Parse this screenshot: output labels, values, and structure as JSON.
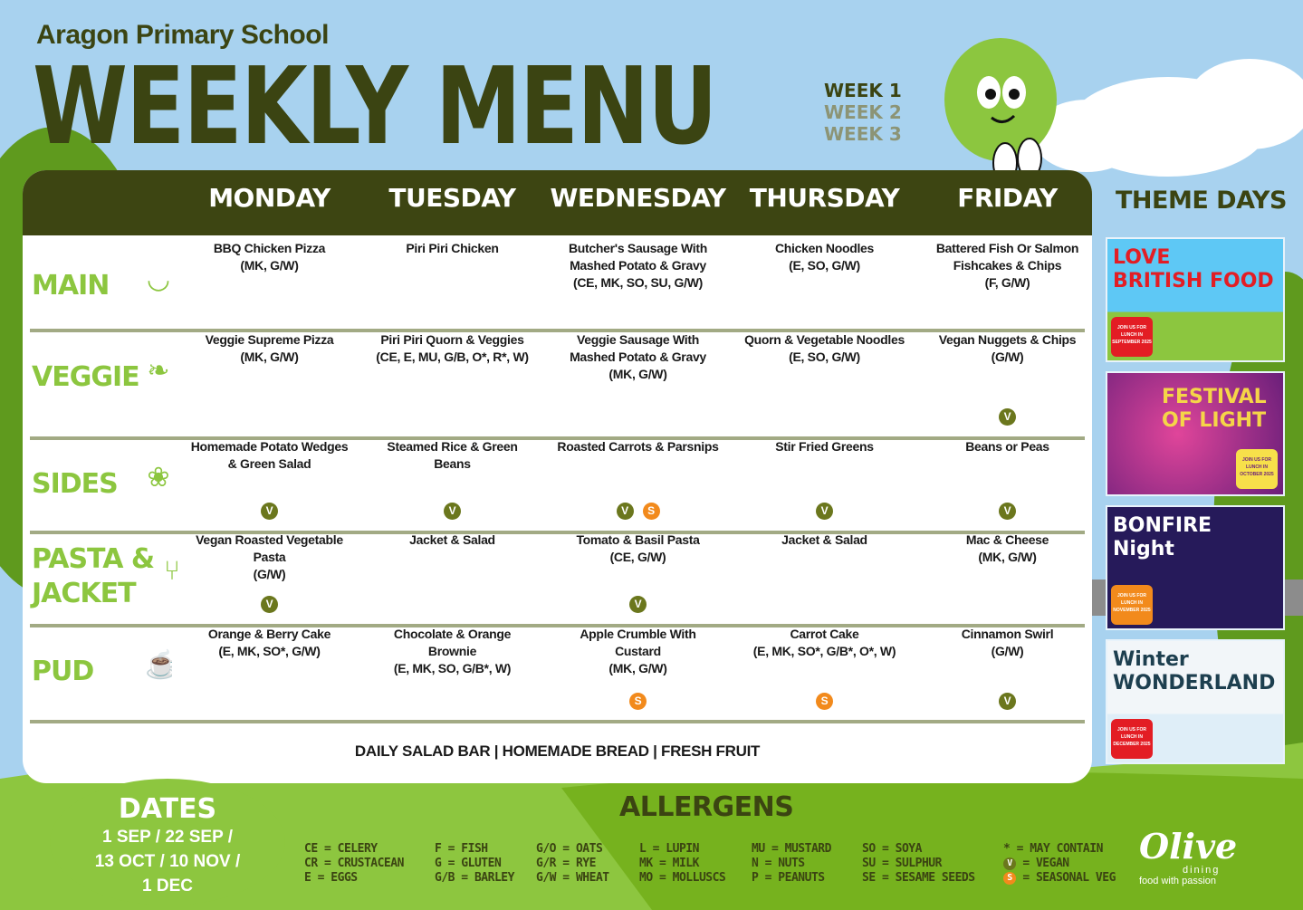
{
  "header": {
    "school": "Aragon Primary School",
    "title": "WEEKLY MENU",
    "weeks": [
      "WEEK 1",
      "WEEK 2",
      "WEEK 3"
    ],
    "active_week": "WEEK 1"
  },
  "days": [
    "MONDAY",
    "TUESDAY",
    "WEDNESDAY",
    "THURSDAY",
    "FRIDAY"
  ],
  "rows": [
    {
      "label": "MAIN",
      "icon": "soup-bowl-icon",
      "cells": [
        {
          "name": "BBQ Chicken Pizza\n(MK, G/W)",
          "badges": []
        },
        {
          "name": "Piri Piri Chicken",
          "badges": []
        },
        {
          "name": "Butcher's Sausage With\nMashed Potato & Gravy\n(CE, MK, SO, SU, G/W)",
          "badges": []
        },
        {
          "name": "Chicken Noodles\n(E, SO, G/W)",
          "badges": []
        },
        {
          "name": "Battered Fish Or Salmon\nFishcakes & Chips\n(F, G/W)",
          "badges": []
        }
      ]
    },
    {
      "label": "VEGGIE",
      "icon": "leaf-icon",
      "cells": [
        {
          "name": "Veggie Supreme Pizza\n(MK, G/W)",
          "badges": []
        },
        {
          "name": "Piri Piri Quorn & Veggies\n(CE, E, MU, G/B, O*, R*, W)",
          "badges": []
        },
        {
          "name": "Veggie Sausage With\nMashed Potato & Gravy\n(MK, G/W)",
          "badges": []
        },
        {
          "name": "Quorn & Vegetable Noodles\n(E, SO, G/W)",
          "badges": []
        },
        {
          "name": "Vegan Nuggets & Chips\n(G/W)",
          "badges": [
            "V"
          ]
        }
      ]
    },
    {
      "label": "SIDES",
      "icon": "peapod-icon",
      "cells": [
        {
          "name": "Homemade Potato Wedges\n& Green Salad",
          "badges": [
            "V"
          ]
        },
        {
          "name": "Steamed Rice & Green\nBeans",
          "badges": [
            "V"
          ]
        },
        {
          "name": "Roasted Carrots & Parsnips",
          "badges": [
            "V",
            "S"
          ]
        },
        {
          "name": "Stir Fried Greens",
          "badges": [
            "V"
          ]
        },
        {
          "name": "Beans or Peas",
          "badges": [
            "V"
          ]
        }
      ]
    },
    {
      "label": "PASTA &\nJACKET",
      "icon": "pasta-fork-icon",
      "cells": [
        {
          "name": "Vegan Roasted Vegetable\nPasta\n(G/W)",
          "badges": [
            "V"
          ]
        },
        {
          "name": "Jacket & Salad",
          "badges": []
        },
        {
          "name": "Tomato & Basil Pasta\n(CE, G/W)",
          "badges": [
            "V"
          ]
        },
        {
          "name": "Jacket & Salad",
          "badges": []
        },
        {
          "name": "Mac & Cheese\n(MK, G/W)",
          "badges": []
        }
      ]
    },
    {
      "label": "PUD",
      "icon": "ice-cream-icon",
      "cells": [
        {
          "name": "Orange & Berry Cake\n(E, MK, SO*,  G/W)",
          "badges": []
        },
        {
          "name": "Chocolate & Orange\nBrownie\n(E, MK, SO, G/B*, W)",
          "badges": []
        },
        {
          "name": "Apple Crumble With\nCustard\n(MK, G/W)",
          "badges": [
            "S"
          ]
        },
        {
          "name": "Carrot Cake\n(E, MK, SO*,  G/B*, O*, W)",
          "badges": [
            "S"
          ]
        },
        {
          "name": "Cinnamon Swirl\n(G/W)",
          "badges": [
            "V"
          ]
        }
      ]
    }
  ],
  "footer": "DAILY SALAD BAR | HOMEMADE BREAD | FRESH FRUIT",
  "theme_days": {
    "title": "THEME DAYS",
    "items": [
      {
        "title": "LOVE\nBRITISH FOOD",
        "join": "JOIN US FOR LUNCH IN SEPTEMBER 2025"
      },
      {
        "title": "FESTIVAL\nOF LIGHT",
        "join": "JOIN US FOR LUNCH IN OCTOBER 2025"
      },
      {
        "title": "BONFIRE\nNight",
        "join": "JOIN US FOR LUNCH IN NOVEMBER 2025"
      },
      {
        "title": "Winter\nWONDERLAND",
        "join": "JOIN US FOR LUNCH IN DECEMBER 2025"
      }
    ]
  },
  "dates": {
    "title": "DATES",
    "text": "1 SEP / 22 SEP /\n13 OCT / 10 NOV /\n1 DEC"
  },
  "allergens": {
    "title": "ALLERGENS",
    "columns": [
      [
        "CE = CELERY",
        "CR = CRUSTACEAN",
        "E = EGGS"
      ],
      [
        "F = FISH",
        "G = GLUTEN",
        "G/B = BARLEY"
      ],
      [
        "G/O = OATS",
        "G/R = RYE",
        "G/W = WHEAT"
      ],
      [
        "L = LUPIN",
        "MK = MILK",
        "MO = MOLLUSCS"
      ],
      [
        "MU = MUSTARD",
        "N = NUTS",
        "P = PEANUTS"
      ],
      [
        "SO = SOYA",
        "SU = SULPHUR",
        "SE = SESAME SEEDS"
      ],
      [
        "* = MAY CONTAIN",
        "= VEGAN",
        "= SEASONAL VEG"
      ]
    ]
  },
  "badge_labels": {
    "V": "V",
    "S": "S"
  },
  "colors": {
    "dark_olive": "#3d4512",
    "leaf_green": "#8cc63f",
    "vegan": "#6b771d",
    "seasonal": "#f28a1c",
    "sky": "#a8d2ef"
  },
  "logo": {
    "name": "Olive",
    "sub": "dining",
    "tagline": "food with passion"
  }
}
